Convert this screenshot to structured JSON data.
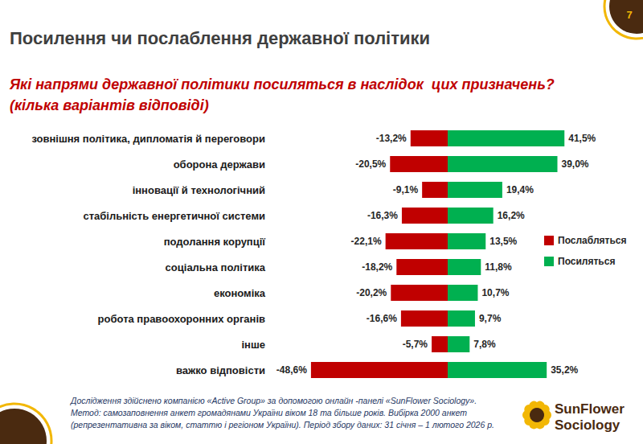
{
  "chart_data": {
    "type": "bar",
    "orientation": "horizontal",
    "stacked": true,
    "data_labels": true,
    "tick_labels": false,
    "grid": false,
    "legend": "right",
    "title": "Посилення чи послаблення державної політики",
    "subtitle": [
      "Які напрями державної політики посиляться в наслідок  цих призначень?",
      "(кілька варіантів відповіді)"
    ],
    "categories": [
      "зовнішня політика, дипломатія й переговори",
      "оборона держави",
      "інновації й технологічний",
      "стабільність енергетичної системи",
      "подолання корупції",
      "соціальна політика",
      "економіка",
      "робота правоохоронних органів",
      "інше",
      "важко відповісти"
    ],
    "series": [
      {
        "name": "Послабляться",
        "color": "#c00000",
        "values": [
          -13.2,
          -20.5,
          -9.1,
          -16.3,
          -22.1,
          -18.2,
          -20.2,
          -16.6,
          -5.7,
          -48.6
        ],
        "value_labels": [
          "-13,2%",
          "-20,5%",
          "-9,1%",
          "-16,3%",
          "-22,1%",
          "-18,2%",
          "-20,2%",
          "-16,6%",
          "-5,7%",
          "-48,6%"
        ]
      },
      {
        "name": "Посиляться",
        "color": "#00b050",
        "values": [
          41.5,
          39.0,
          19.4,
          16.2,
          13.5,
          11.8,
          10.7,
          9.7,
          7.8,
          35.2
        ],
        "value_labels": [
          "41,5%",
          "39,0%",
          "19,4%",
          "16,2%",
          "13,5%",
          "11,8%",
          "10,7%",
          "9,7%",
          "7,8%",
          "35,2%"
        ]
      }
    ],
    "xlim": [
      -50,
      50
    ],
    "xticks": [
      -50,
      0,
      50
    ],
    "page_number": "7",
    "notes": [
      "Дослідження здійснено компанією «Active Group» за допомогою онлайн -панелі «SunFlower Sociology».",
      "Метод: самозаповнення анкет громадянами України віком 18 та більше років. Вибірка 2000 анкет",
      "(репрезентативна за віком, статтю і регіоном України). Період збору даних: 31 січня – 1 лютого 2026 р."
    ],
    "logo": [
      "SunFlower",
      "Sociology"
    ]
  }
}
